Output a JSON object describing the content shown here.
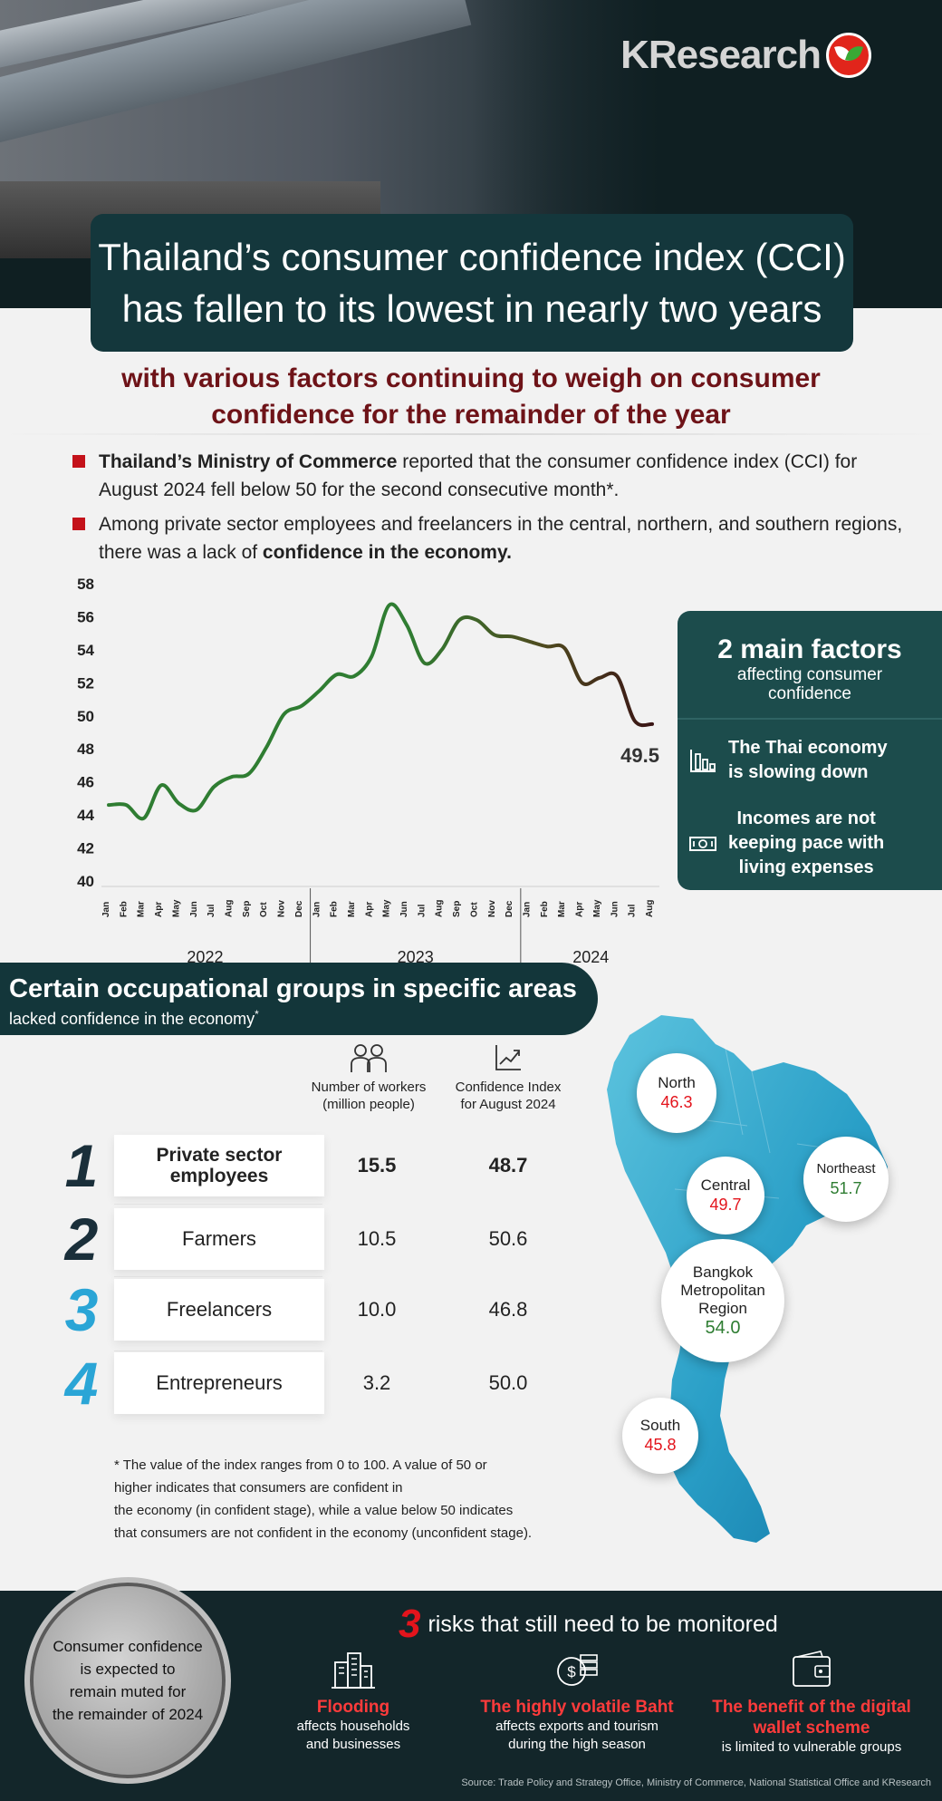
{
  "header": {
    "logo_text": "KResearch",
    "title_line1": "Thailand’s consumer confidence index (CCI)",
    "title_line2": "has fallen to its lowest in nearly two years",
    "subtitle_line1": "with various factors continuing to weigh on consumer",
    "subtitle_line2": "confidence for the remainder of the year"
  },
  "bullets": [
    {
      "bold": "Thailand’s Ministry of Commerce",
      "text": " reported that the consumer confidence index (CCI) for August 2024 fell below 50 for the second consecutive month*."
    },
    {
      "text": "Among private sector employees and freelancers in the central, northern, and southern regions, there was a lack of ",
      "bold": "confidence in the economy."
    }
  ],
  "chart_data": {
    "type": "line",
    "x": [
      "Jan",
      "Feb",
      "Mar",
      "Apr",
      "May",
      "Jun",
      "Jul",
      "Aug",
      "Sep",
      "Oct",
      "Nov",
      "Dec",
      "Jan",
      "Feb",
      "Mar",
      "Apr",
      "May",
      "Jun",
      "Jul",
      "Aug",
      "Sep",
      "Oct",
      "Nov",
      "Dec",
      "Jan",
      "Feb",
      "Mar",
      "Apr",
      "May",
      "Jun",
      "Jul",
      "Aug"
    ],
    "years": [
      {
        "label": "2022",
        "span": 12
      },
      {
        "label": "2023",
        "span": 12
      },
      {
        "label": "2024",
        "span": 8
      }
    ],
    "values": [
      44.6,
      44.6,
      43.8,
      45.8,
      44.7,
      44.3,
      45.7,
      46.3,
      46.5,
      48.1,
      50.1,
      50.6,
      51.5,
      52.5,
      52.4,
      53.6,
      56.7,
      55.5,
      53.2,
      54.0,
      55.8,
      55.8,
      54.9,
      54.8,
      54.5,
      54.2,
      54.1,
      52.0,
      52.3,
      52.4,
      49.7,
      49.5
    ],
    "ylim": [
      40,
      58
    ],
    "yticks": [
      40,
      42,
      44,
      46,
      48,
      50,
      52,
      54,
      56,
      58
    ],
    "end_label": "49.5",
    "colors": {
      "start": "#2f7d32",
      "mid": "#4f4a1f",
      "end": "#3a1515"
    }
  },
  "factors": {
    "title": "2 main factors",
    "sub1": "affecting consumer",
    "sub2": "confidence",
    "items": [
      {
        "line1": "The Thai economy",
        "line2": "is slowing down",
        "icon": "bar-chart-icon"
      },
      {
        "line1": "Incomes are not",
        "line2": "keeping pace with",
        "line3": "living expenses",
        "icon": "banknote-icon"
      }
    ]
  },
  "occupations": {
    "title": "Certain occupational groups in specific areas",
    "subtitle": "lacked confidence in the economy",
    "subtitle_mark": "*",
    "col_workers_1": "Number of workers",
    "col_workers_2": "(million people)",
    "col_cci_1": "Confidence Index",
    "col_cci_2": "for August 2024",
    "rows": [
      {
        "rank": "1",
        "name_1": "Private sector",
        "name_2": "employees",
        "workers": "15.5",
        "cci": "48.7",
        "cci_color": "#e3141c"
      },
      {
        "rank": "2",
        "name_1": "Farmers",
        "name_2": "",
        "workers": "10.5",
        "cci": "50.6",
        "cci_color": "#2e7d32"
      },
      {
        "rank": "3",
        "name_1": "Freelancers",
        "name_2": "",
        "workers": "10.0",
        "cci": "46.8",
        "cci_color": "#e3141c"
      },
      {
        "rank": "4",
        "name_1": "Entrepreneurs",
        "name_2": "",
        "workers": "3.2",
        "cci": "50.0",
        "cci_color": "#2e7d32"
      }
    ],
    "footnote_1": "* The value of the index ranges from 0 to 100. A value of 50 or",
    "footnote_2": "higher indicates that consumers are confident in",
    "footnote_3": "the economy (in confident stage), while a value below 50 indicates",
    "footnote_4": "that consumers are not confident in the economy (unconfident stage)."
  },
  "regions": [
    {
      "name_1": "North",
      "name_2": "",
      "name_3": "",
      "value": "46.3",
      "color": "#e3141c"
    },
    {
      "name_1": "Northeast",
      "name_2": "",
      "name_3": "",
      "value": "51.7",
      "color": "#2e7d32"
    },
    {
      "name_1": "Central",
      "name_2": "",
      "name_3": "",
      "value": "49.7",
      "color": "#e3141c"
    },
    {
      "name_1": "Bangkok",
      "name_2": "Metropolitan",
      "name_3": "Region",
      "value": "54.0",
      "color": "#2e7d32"
    },
    {
      "name_1": "South",
      "name_2": "",
      "name_3": "",
      "value": "45.8",
      "color": "#e3141c"
    }
  ],
  "footer": {
    "muted_1": "Consumer confidence",
    "muted_2": "is expected to",
    "muted_3": "remain muted for",
    "muted_4": "the remainder of 2024",
    "risk_number": "3",
    "risk_title": "risks that still need to be monitored",
    "risks": [
      {
        "head_1": "Flooding",
        "head_2": "",
        "desc_1": "affects households",
        "desc_2": "and businesses",
        "icon": "buildings-icon"
      },
      {
        "head_1": "The highly volatile Baht",
        "head_2": "",
        "desc_1": "affects exports and tourism",
        "desc_2": "during the high season",
        "icon": "coins-icon"
      },
      {
        "head_1": "The benefit of the digital",
        "head_2": "wallet scheme",
        "desc_1": "is limited to vulnerable groups",
        "desc_2": "",
        "icon": "wallet-icon"
      }
    ],
    "source": "Source: Trade Policy and Strategy Office, Ministry of Commerce, National Statistical Office and KResearch"
  }
}
